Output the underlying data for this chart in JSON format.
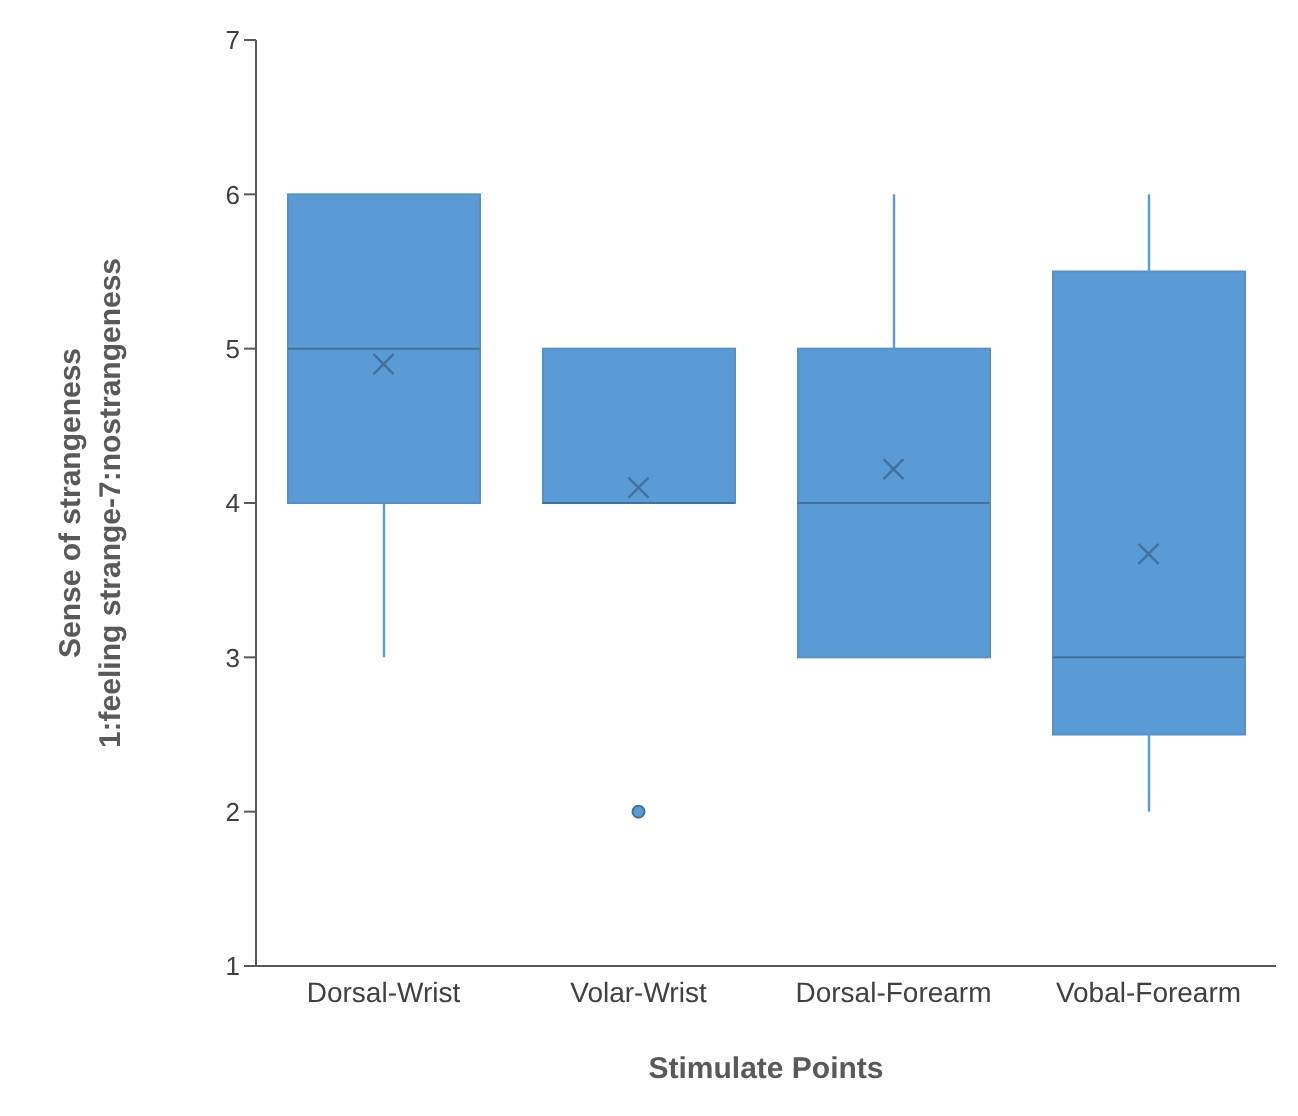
{
  "chart_data": {
    "type": "box",
    "xlabel": "Stimulate Points",
    "ylabel": "Sense of strangeness\n1:feeling strange-7:nostrangeness",
    "categories": [
      "Dorsal-Wrist",
      "Volar-Wrist",
      "Dorsal-Forearm",
      "Vobal-Forearm"
    ],
    "color": "#5b9bd5",
    "boxes": [
      {
        "low": 3,
        "q1": 4,
        "median": 5,
        "q3": 6,
        "high": 6,
        "mean": 4.9
      },
      {
        "low": 4,
        "q1": 4,
        "median": 4,
        "q3": 5,
        "high": 5,
        "mean": 4.1,
        "outliers": [
          2
        ]
      },
      {
        "low": 3,
        "q1": 3,
        "median": 4,
        "q3": 5,
        "high": 6,
        "mean": 4.22
      },
      {
        "low": 2,
        "q1": 2.5,
        "median": 3,
        "q3": 5.5,
        "high": 6,
        "mean": 3.67
      }
    ],
    "ylim": [
      1,
      7
    ],
    "yticks": [
      1,
      2,
      3,
      4,
      5,
      6,
      7
    ]
  }
}
